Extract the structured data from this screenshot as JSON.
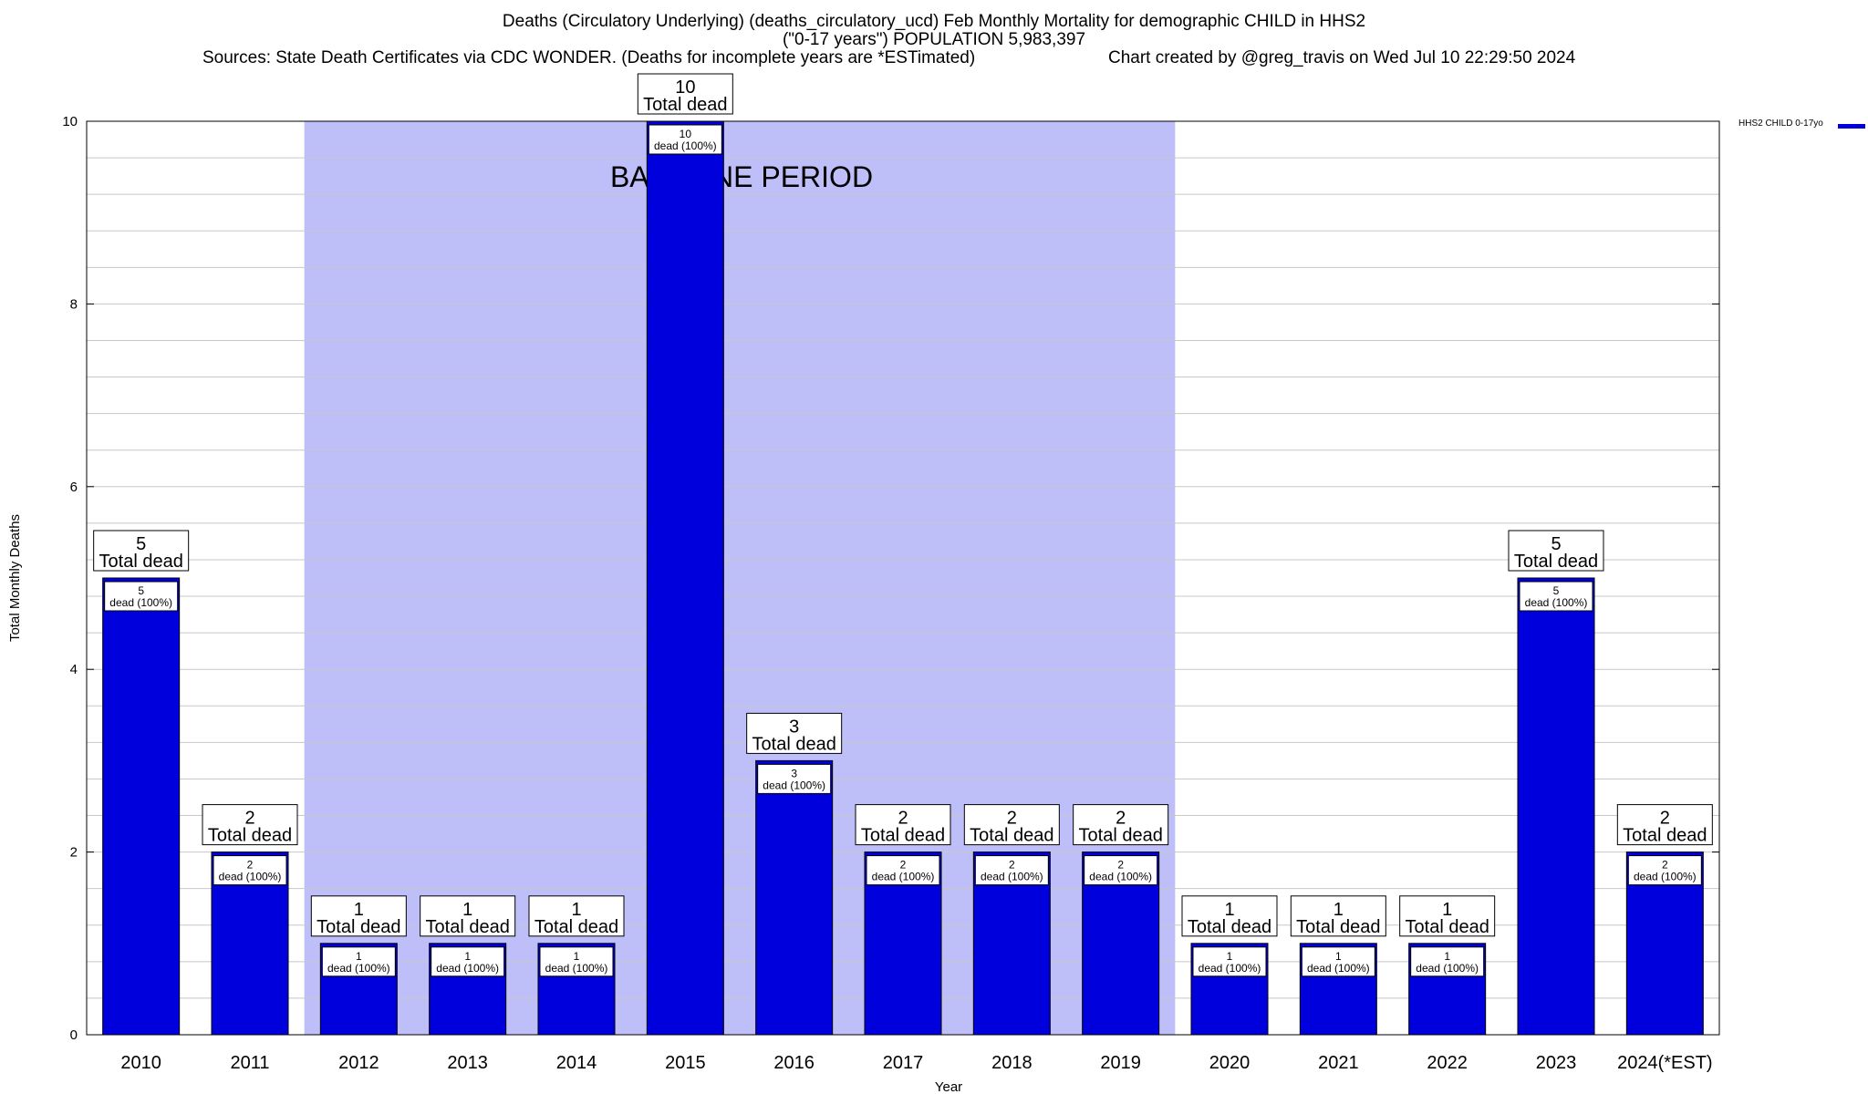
{
  "header": {
    "title_line1": "Deaths (Circulatory Underlying) (deaths_circulatory_ucd) Feb Monthly Mortality for demographic CHILD in HHS2",
    "title_line2": "(\"0-17 years\") POPULATION 5,983,397",
    "sources": "Sources: State Death Certificates via CDC WONDER. (Deaths for incomplete years are *ESTimated)",
    "credit": "Chart created by @greg_travis on Wed Jul 10 22:29:50 2024"
  },
  "legend": {
    "label": "HHS2 CHILD 0-17yo"
  },
  "colors": {
    "bar": "#0000dd",
    "baseline": "#bebef9",
    "grid": "#c8c8c8"
  },
  "chart_data": {
    "type": "bar",
    "xlabel": "Year",
    "ylabel": "Total Monthly Deaths",
    "ylim": [
      0,
      10
    ],
    "yticks": [
      0,
      2,
      4,
      6,
      8,
      10
    ],
    "grid": true,
    "legend_position": "top-right, outside plot",
    "categories": [
      "2010",
      "2011",
      "2012",
      "2013",
      "2014",
      "2015",
      "2016",
      "2017",
      "2018",
      "2019",
      "2020",
      "2021",
      "2022",
      "2023",
      "2024(*EST)"
    ],
    "series": [
      {
        "name": "HHS2 CHILD 0-17yo",
        "values": [
          5,
          2,
          1,
          1,
          1,
          10,
          3,
          2,
          2,
          2,
          1,
          1,
          1,
          5,
          2
        ]
      }
    ],
    "bar_total_label": "Total dead",
    "bar_inner_label": "dead (100%)",
    "baseline_period": {
      "label": "BASELINE PERIOD",
      "from": "2012",
      "to": "2019"
    }
  }
}
